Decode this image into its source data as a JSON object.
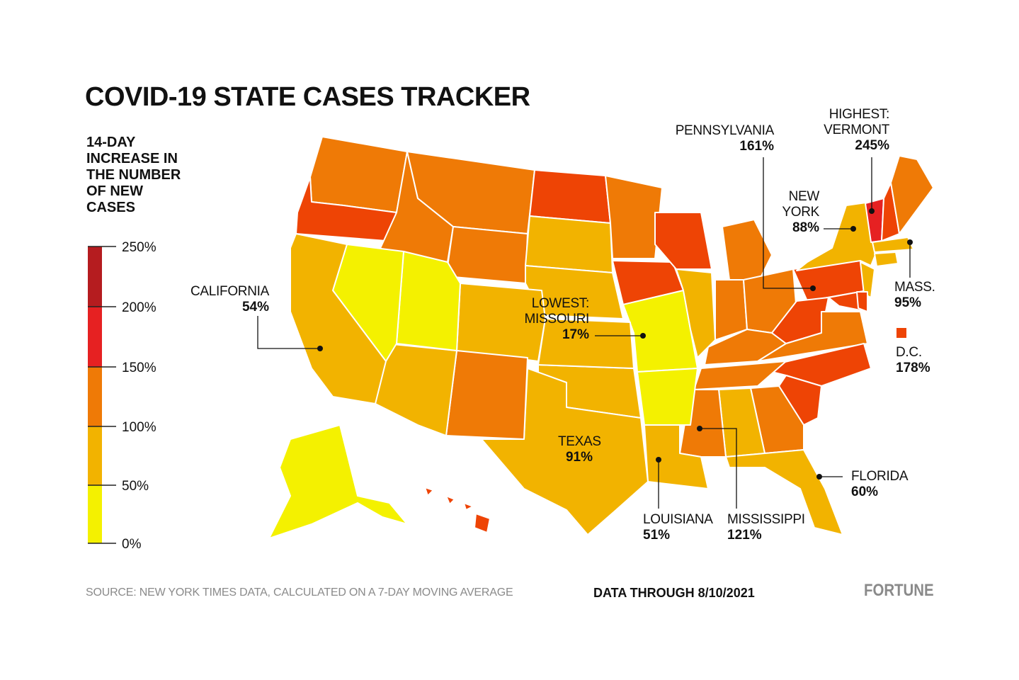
{
  "title": "COVID-19 STATE CASES TRACKER",
  "legend": {
    "title_lines": [
      "14-DAY",
      "INCREASE IN",
      "THE NUMBER",
      "OF NEW",
      "CASES"
    ],
    "ticks": [
      "250%",
      "200%",
      "150%",
      "100%",
      "50%",
      "0%"
    ],
    "bands": [
      {
        "from": 0,
        "to": 50,
        "color": "#f4f100"
      },
      {
        "from": 50,
        "to": 100,
        "color": "#f2b300"
      },
      {
        "from": 100,
        "to": 150,
        "color": "#ef7a06"
      },
      {
        "from": 150,
        "to": 200,
        "color": "#e62122"
      },
      {
        "from": 200,
        "to": 250,
        "color": "#b51c1f"
      }
    ]
  },
  "colors": {
    "low": "#f4f100",
    "mid": "#f2b300",
    "high": "#ef7a06",
    "higher": "#ee4405",
    "highest": "#e62122",
    "state_border": "#ffffff"
  },
  "callouts": {
    "pennsylvania": {
      "name": "PENNSYLVANIA",
      "value": "161%"
    },
    "vermont": {
      "name": "HIGHEST:",
      "name2": "VERMONT",
      "value": "245%"
    },
    "new_york": {
      "name": "NEW",
      "name2": "YORK",
      "value": "88%"
    },
    "mass": {
      "name": "MASS.",
      "value": "95%"
    },
    "dc": {
      "name": "D.C.",
      "value": "178%"
    },
    "california": {
      "name": "CALIFORNIA",
      "value": "54%"
    },
    "missouri": {
      "name": "LOWEST:",
      "name2": "MISSOURI",
      "value": "17%"
    },
    "texas": {
      "name": "TEXAS",
      "value": "91%"
    },
    "louisiana": {
      "name": "LOUISIANA",
      "value": "51%"
    },
    "mississippi": {
      "name": "MISSISSIPPI",
      "value": "121%"
    },
    "florida": {
      "name": "FLORIDA",
      "value": "60%"
    }
  },
  "footer": {
    "source": "SOURCE: NEW YORK TIMES DATA, CALCULATED ON A 7-DAY MOVING AVERAGE",
    "data_through": "DATA THROUGH 8/10/2021",
    "brand": "FORTUNE"
  }
}
